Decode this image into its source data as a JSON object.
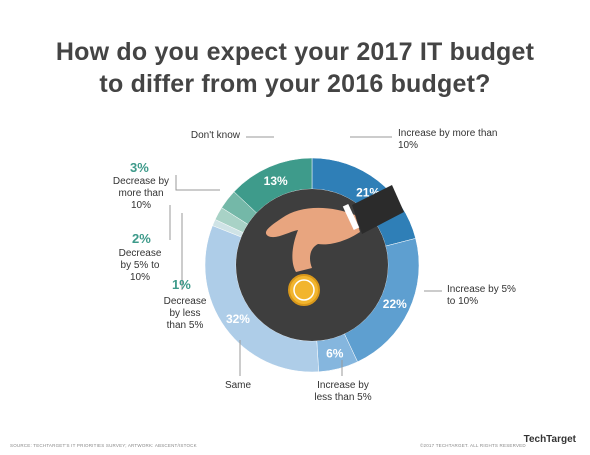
{
  "chart_data": {
    "type": "donut",
    "title": [
      "How do you expect your 2017 IT budget",
      "to differ from your 2016 budget?"
    ],
    "categories": [
      "Increase by more than 10%",
      "Increase by 5% to 10%",
      "Increase by less than 5%",
      "Same",
      "Decrease by less than 5%",
      "Decrease by 5% to 10%",
      "Decrease by more than 10%",
      "Don't know"
    ],
    "values": [
      21,
      22,
      6,
      32,
      1,
      2,
      3,
      13
    ],
    "value_labels": [
      "21%",
      "22%",
      "6%",
      "32%",
      "1%",
      "2%",
      "3%",
      "13%"
    ],
    "colors": [
      "#2f7fb7",
      "#5e9fd0",
      "#85b6de",
      "#aecde8",
      "#cfe3e6",
      "#a8d2c6",
      "#74b8a8",
      "#3e9b8b"
    ],
    "source": "SOURCE: TECHTARGET'S IT PRIORITIES SURVEY; ARTWORK: ABSCENT/ISTOCK",
    "copyright": "©2017 TECHTARGET. ALL RIGHTS RESERVED",
    "brand": "TechTarget"
  }
}
